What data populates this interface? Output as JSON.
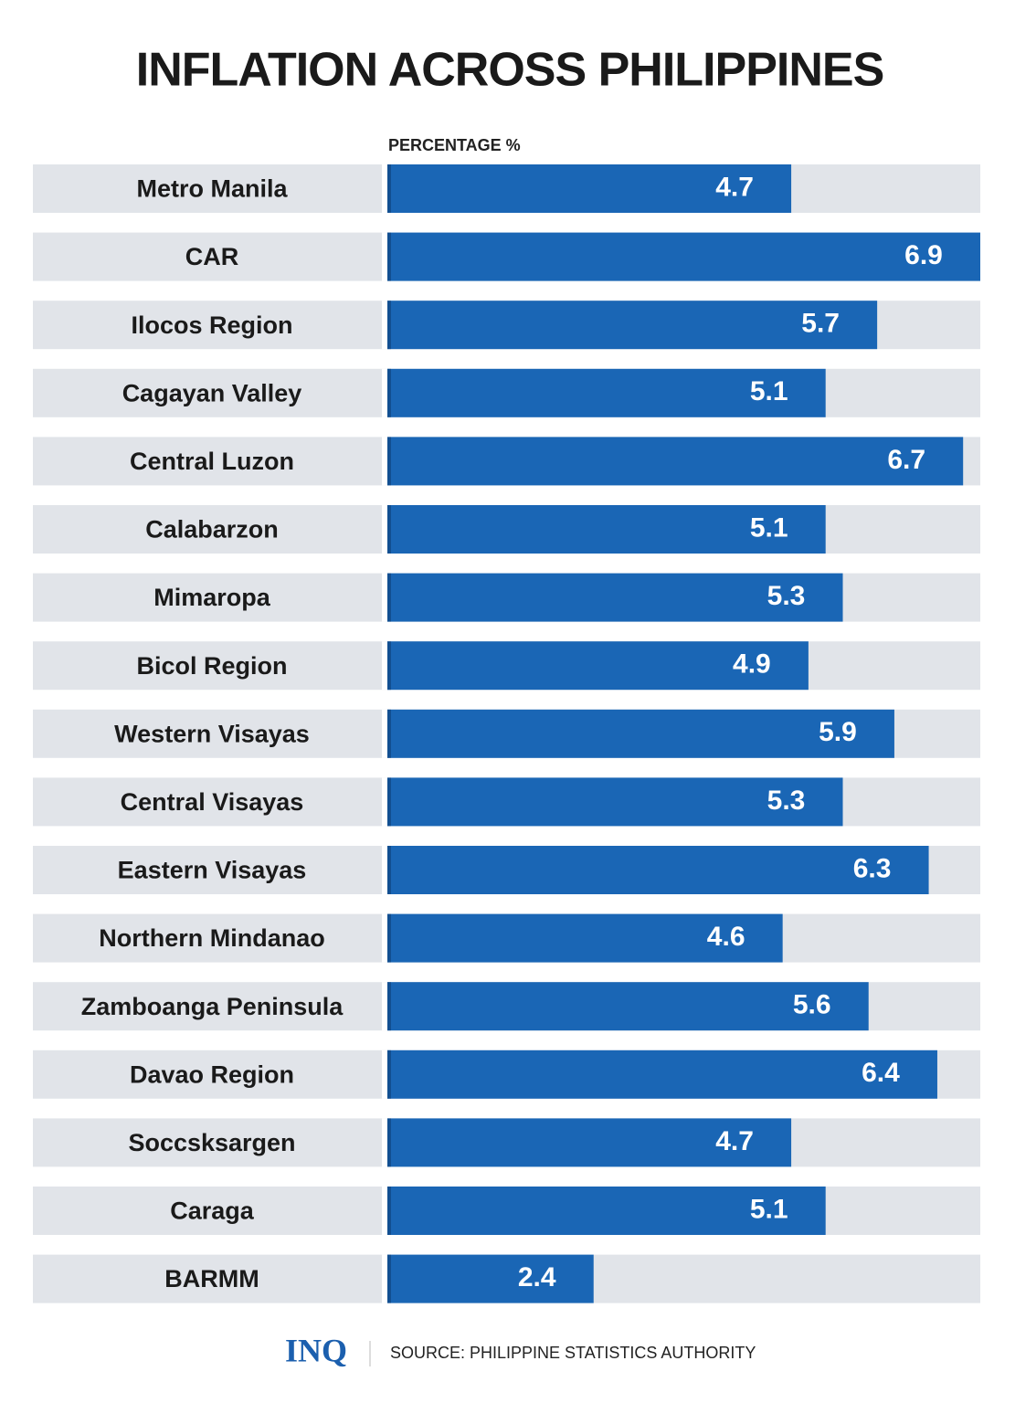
{
  "chart_data": {
    "type": "bar",
    "orientation": "horizontal",
    "title": "INFLATION ACROSS PHILIPPINES",
    "x_label": "PERCENTAGE %",
    "categories": [
      "Metro Manila",
      "CAR",
      "Ilocos Region",
      "Cagayan Valley",
      "Central Luzon",
      "Calabarzon",
      "Mimaropa",
      "Bicol Region",
      "Western Visayas",
      "Central Visayas",
      "Eastern Visayas",
      "Northern Mindanao",
      "Zamboanga Peninsula",
      "Davao Region",
      "Soccsksargen",
      "Caraga",
      "BARMM"
    ],
    "values": [
      4.7,
      6.9,
      5.7,
      5.1,
      6.7,
      5.1,
      5.3,
      4.9,
      5.9,
      5.3,
      6.3,
      4.6,
      5.6,
      6.4,
      4.7,
      5.1,
      2.4
    ],
    "color": "#1a66b5",
    "background_color": "#e1e4e9",
    "logo": "INQ",
    "source": "SOURCE: PHILIPPINE STATISTICS AUTHORITY"
  }
}
